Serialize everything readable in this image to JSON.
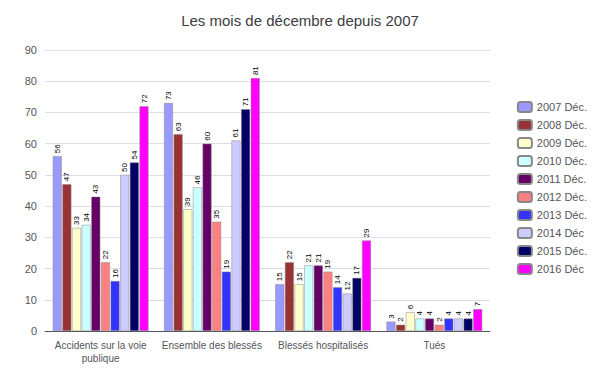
{
  "chart_data": {
    "type": "bar",
    "title": "Les mois de décembre depuis 2007",
    "categories": [
      "Accidents sur la voie\npublique",
      "Ensemble des blessés",
      "Blessés hospitalisés",
      "Tués"
    ],
    "series": [
      {
        "name": "2007 Déc.",
        "color": "#9999FF",
        "values": [
          56,
          73,
          15,
          3
        ]
      },
      {
        "name": "2008 Déc.",
        "color": "#993333",
        "values": [
          47,
          63,
          22,
          2
        ]
      },
      {
        "name": "2009 Déc.",
        "color": "#FFFFCC",
        "values": [
          33,
          39,
          15,
          6
        ]
      },
      {
        "name": "2010 Déc.",
        "color": "#CCFFFF",
        "values": [
          34,
          46,
          21,
          4
        ]
      },
      {
        "name": "2011 Déc.",
        "color": "#660066",
        "values": [
          43,
          60,
          21,
          4
        ]
      },
      {
        "name": "2012 Déc.",
        "color": "#FF8080",
        "values": [
          22,
          35,
          19,
          2
        ]
      },
      {
        "name": "2013 Déc.",
        "color": "#3333FF",
        "values": [
          16,
          19,
          14,
          4
        ]
      },
      {
        "name": "2014 Déc",
        "color": "#CCCCFF",
        "values": [
          50,
          61,
          12,
          4
        ]
      },
      {
        "name": "2015 Déc.",
        "color": "#000066",
        "values": [
          54,
          71,
          17,
          4
        ]
      },
      {
        "name": "2016 Déc",
        "color": "#FF00FF",
        "values": [
          72,
          81,
          29,
          7
        ]
      }
    ],
    "ylim": [
      0,
      90
    ],
    "yticks": [
      0,
      10,
      20,
      30,
      40,
      50,
      60,
      70,
      80,
      90
    ],
    "grid": true,
    "legend": "right",
    "data_labels": true
  }
}
